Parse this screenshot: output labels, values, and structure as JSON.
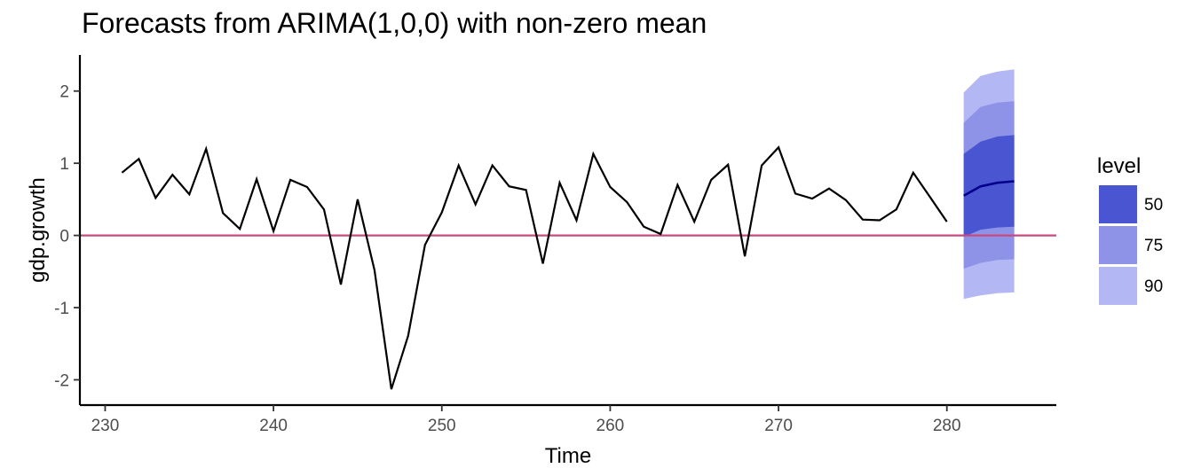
{
  "chart_data": {
    "type": "line",
    "title": "Forecasts from ARIMA(1,0,0) with non-zero mean",
    "xlabel": "Time",
    "ylabel": "gdp.growth",
    "xlim": [
      228.5,
      286.5
    ],
    "ylim": [
      -2.35,
      2.5
    ],
    "x_ticks": [
      230,
      240,
      250,
      260,
      270,
      280
    ],
    "y_ticks": [
      -2,
      -1,
      0,
      1,
      2
    ],
    "x_tick_labels": [
      "230",
      "240",
      "250",
      "260",
      "270",
      "280"
    ],
    "y_tick_labels": [
      "-2",
      "-1",
      "0",
      "1",
      "2"
    ],
    "grid": false,
    "reference_line": {
      "y": 0,
      "color": "#c74b7e"
    },
    "series": [
      {
        "x": [
          231,
          232,
          233,
          234,
          235,
          236,
          237,
          238,
          239,
          240,
          241,
          242,
          243,
          244,
          245,
          246,
          247,
          248,
          249,
          250,
          251,
          252,
          253,
          254,
          255,
          256,
          257,
          258,
          259,
          260,
          261,
          262,
          263,
          264,
          265,
          266,
          267,
          268,
          269,
          270,
          271,
          272,
          273,
          274,
          275,
          276,
          277,
          278,
          279,
          280
        ],
        "values": [
          0.87,
          1.06,
          0.52,
          0.84,
          0.57,
          1.2,
          0.31,
          0.09,
          0.78,
          0.06,
          0.77,
          0.67,
          0.36,
          -0.68,
          0.5,
          -0.48,
          -2.13,
          -1.39,
          -0.13,
          0.32,
          0.97,
          0.43,
          0.97,
          0.68,
          0.63,
          -0.39,
          0.73,
          0.21,
          1.13,
          0.67,
          0.46,
          0.12,
          0.02,
          0.7,
          0.19,
          0.77,
          0.98,
          -0.29,
          0.97,
          1.22,
          0.58,
          0.51,
          0.65,
          0.49,
          0.22,
          0.21,
          0.36,
          0.87,
          0.53,
          0.19
        ],
        "color": "#000000"
      }
    ],
    "forecast": {
      "x": [
        281,
        282,
        283,
        284
      ],
      "mean": [
        0.55,
        0.68,
        0.73,
        0.75
      ],
      "line_color": "#00008b",
      "intervals": [
        {
          "level": "90",
          "lower": [
            -0.88,
            -0.83,
            -0.8,
            -0.79
          ],
          "upper": [
            1.98,
            2.21,
            2.27,
            2.3
          ],
          "color": "#b3b7f3"
        },
        {
          "level": "75",
          "lower": [
            -0.46,
            -0.38,
            -0.34,
            -0.33
          ],
          "upper": [
            1.56,
            1.78,
            1.84,
            1.86
          ],
          "color": "#8e93e8"
        },
        {
          "level": "50",
          "lower": [
            -0.02,
            0.08,
            0.11,
            0.12
          ],
          "upper": [
            1.13,
            1.3,
            1.37,
            1.39
          ],
          "color": "#4a55d2"
        }
      ]
    },
    "legend": {
      "title": "level",
      "position": "right",
      "entries": [
        {
          "label": "50",
          "color": "#4a55d2"
        },
        {
          "label": "75",
          "color": "#8e93e8"
        },
        {
          "label": "90",
          "color": "#b3b7f3"
        }
      ]
    }
  }
}
